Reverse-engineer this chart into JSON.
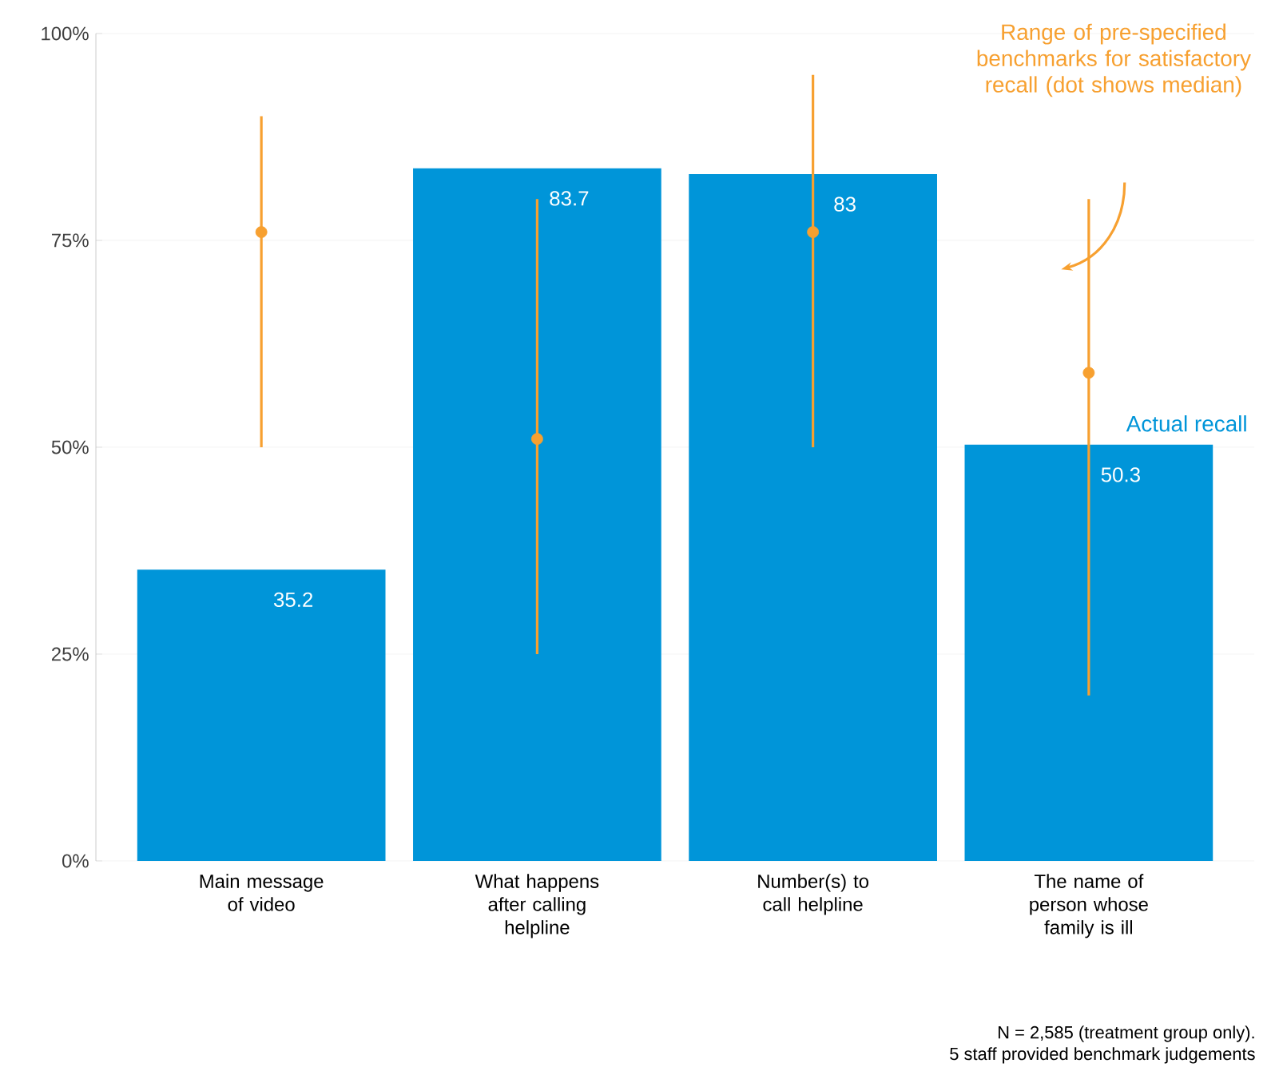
{
  "chart_data": {
    "type": "bar",
    "categories": [
      "Main message of video",
      "What happens after calling helpline",
      "Number(s) to call helpline",
      "The name of person whose family is ill"
    ],
    "series": [
      {
        "name": "Actual recall",
        "color": "#0095d9",
        "values": [
          35.2,
          83.7,
          83,
          50.3
        ],
        "value_labels": [
          "35.2",
          "83.7",
          "83",
          "50.3"
        ]
      },
      {
        "name": "Range of pre-specified benchmarks for satisfactory recall (dot shows median)",
        "type": "scatter",
        "marker": "circle",
        "color": "#f7a030",
        "values": [
          76,
          51,
          76,
          59
        ],
        "errors": [
          [
            50,
            90
          ],
          [
            25,
            80
          ],
          [
            50,
            95
          ],
          [
            20,
            80
          ]
        ]
      }
    ],
    "ylim": [
      0,
      100
    ],
    "yticks": [
      {
        "value": 0,
        "label": "0%"
      },
      {
        "value": 25,
        "label": "25%"
      },
      {
        "value": 50,
        "label": "50%"
      },
      {
        "value": 75,
        "label": "75%"
      },
      {
        "value": 100,
        "label": "100%"
      }
    ],
    "grid": "y",
    "legend": false,
    "annotations": [
      "N = 2,585 (treatment group only).",
      "5 staff provided benchmark judgements"
    ]
  }
}
